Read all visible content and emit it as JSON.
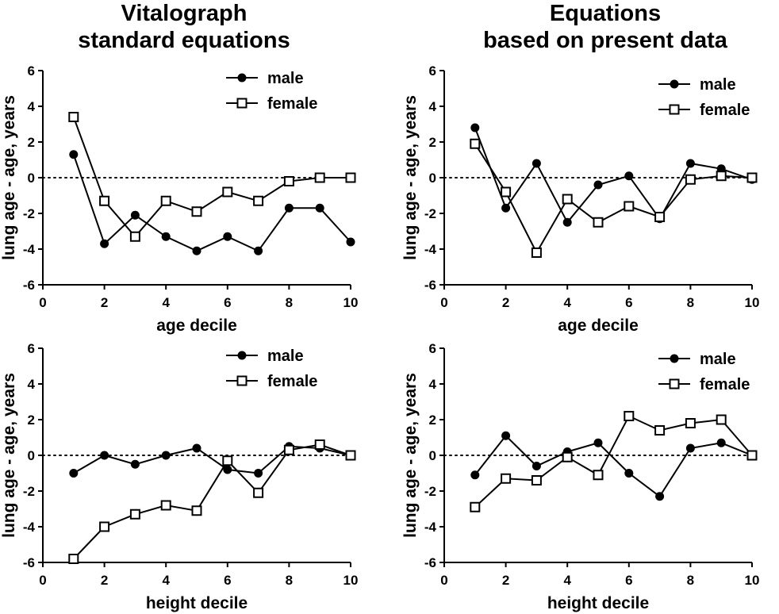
{
  "columns": [
    {
      "title_line1": "Vitalograph",
      "title_line2": "standard equations"
    },
    {
      "title_line1": "Equations",
      "title_line2": "based on present data"
    }
  ],
  "chart_data": [
    {
      "type": "line",
      "title": "Vitalograph standard equations",
      "xlabel": "age decile",
      "ylabel": "lung age - age, years",
      "xlim": [
        0,
        10
      ],
      "ylim": [
        -6,
        6
      ],
      "xticks": [
        0,
        2,
        4,
        6,
        8,
        10
      ],
      "yticks": [
        -6,
        -4,
        -2,
        0,
        2,
        4,
        6
      ],
      "reference_line": 0,
      "legend": "top-right",
      "series": [
        {
          "name": "male",
          "marker": "filled-circle",
          "x": [
            1,
            2,
            3,
            4,
            5,
            6,
            7,
            8,
            9,
            10
          ],
          "values": [
            1.3,
            -3.7,
            -2.1,
            -3.3,
            -4.1,
            -3.3,
            -4.1,
            -1.7,
            -1.7,
            -3.6
          ]
        },
        {
          "name": "female",
          "marker": "open-square",
          "x": [
            1,
            2,
            3,
            4,
            5,
            6,
            7,
            8,
            9,
            10
          ],
          "values": [
            3.4,
            -1.3,
            -3.3,
            -1.3,
            -1.9,
            -0.8,
            -1.3,
            -0.2,
            0.0,
            0.0
          ]
        }
      ]
    },
    {
      "type": "line",
      "title": "Equations based on present data",
      "xlabel": "age decile",
      "ylabel": "lung age - age, years",
      "xlim": [
        0,
        10
      ],
      "ylim": [
        -6,
        6
      ],
      "xticks": [
        0,
        2,
        4,
        6,
        8,
        10
      ],
      "yticks": [
        -6,
        -4,
        -2,
        0,
        2,
        4,
        6
      ],
      "reference_line": 0,
      "legend": "top-right",
      "series": [
        {
          "name": "male",
          "marker": "filled-circle",
          "x": [
            1,
            2,
            3,
            4,
            5,
            6,
            7,
            8,
            9,
            10
          ],
          "values": [
            2.8,
            -1.7,
            0.8,
            -2.5,
            -0.4,
            0.1,
            -2.3,
            0.8,
            0.5,
            -0.1
          ]
        },
        {
          "name": "female",
          "marker": "open-square",
          "x": [
            1,
            2,
            3,
            4,
            5,
            6,
            7,
            8,
            9,
            10
          ],
          "values": [
            1.9,
            -0.8,
            -4.2,
            -1.2,
            -2.5,
            -1.6,
            -2.2,
            -0.1,
            0.1,
            0.0
          ]
        }
      ]
    },
    {
      "type": "line",
      "title": "Vitalograph standard equations",
      "xlabel": "height decile",
      "ylabel": "lung age - age, years",
      "xlim": [
        0,
        10
      ],
      "ylim": [
        -6,
        6
      ],
      "xticks": [
        0,
        2,
        4,
        6,
        8,
        10
      ],
      "yticks": [
        -6,
        -4,
        -2,
        0,
        2,
        4,
        6
      ],
      "reference_line": 0,
      "legend": "top-right",
      "series": [
        {
          "name": "male",
          "marker": "filled-circle",
          "x": [
            1,
            2,
            3,
            4,
            5,
            6,
            7,
            8,
            9,
            10
          ],
          "values": [
            -1.0,
            0.0,
            -0.5,
            0.0,
            0.4,
            -0.8,
            -1.0,
            0.5,
            0.4,
            0.0
          ]
        },
        {
          "name": "female",
          "marker": "open-square",
          "x": [
            1,
            2,
            3,
            4,
            5,
            6,
            7,
            8,
            9,
            10
          ],
          "values": [
            -5.8,
            -4.0,
            -3.3,
            -2.8,
            -3.1,
            -0.3,
            -2.1,
            0.3,
            0.6,
            0.0
          ]
        }
      ]
    },
    {
      "type": "line",
      "title": "Equations based on present data",
      "xlabel": "height decile",
      "ylabel": "lung age - age, years",
      "xlim": [
        0,
        10
      ],
      "ylim": [
        -6,
        6
      ],
      "xticks": [
        0,
        2,
        4,
        6,
        8,
        10
      ],
      "yticks": [
        -6,
        -4,
        -2,
        0,
        2,
        4,
        6
      ],
      "reference_line": 0,
      "legend": "top-right",
      "series": [
        {
          "name": "male",
          "marker": "filled-circle",
          "x": [
            1,
            2,
            3,
            4,
            5,
            6,
            7,
            8,
            9,
            10
          ],
          "values": [
            -1.1,
            1.1,
            -0.6,
            0.2,
            0.7,
            -1.0,
            -2.3,
            0.4,
            0.7,
            0.0
          ]
        },
        {
          "name": "female",
          "marker": "open-square",
          "x": [
            1,
            2,
            3,
            4,
            5,
            6,
            7,
            8,
            9,
            10
          ],
          "values": [
            -2.9,
            -1.3,
            -1.4,
            -0.1,
            -1.1,
            2.2,
            1.4,
            1.8,
            2.0,
            0.0
          ]
        }
      ]
    }
  ]
}
